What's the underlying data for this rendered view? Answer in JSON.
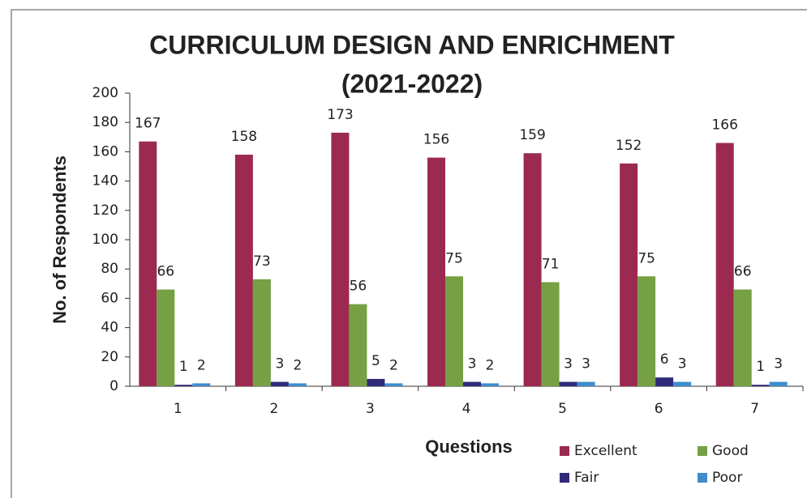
{
  "chart_data": {
    "type": "bar",
    "title": [
      "CURRICULUM DESIGN AND ENRICHMENT",
      "(2021-2022)"
    ],
    "x_label": "Questions",
    "y_label": "No. of Respondents",
    "categories": [
      "1",
      "2",
      "3",
      "4",
      "5",
      "6",
      "7"
    ],
    "series": [
      {
        "name": "Excellent",
        "color": "#9c2a50",
        "values": [
          167,
          158,
          173,
          156,
          159,
          152,
          166
        ]
      },
      {
        "name": "Good",
        "color": "#75a043",
        "values": [
          66,
          73,
          56,
          75,
          71,
          75,
          66
        ]
      },
      {
        "name": "Fair",
        "color": "#2f2a78",
        "values": [
          1,
          3,
          5,
          3,
          3,
          6,
          1
        ]
      },
      {
        "name": "Poor",
        "color": "#3f8dcc",
        "values": [
          2,
          2,
          2,
          2,
          3,
          3,
          3
        ]
      }
    ],
    "ylim": [
      0,
      200
    ],
    "yticks": [
      0,
      20,
      40,
      60,
      80,
      100,
      120,
      140,
      160,
      180,
      200
    ],
    "legend": "bottom-right"
  }
}
